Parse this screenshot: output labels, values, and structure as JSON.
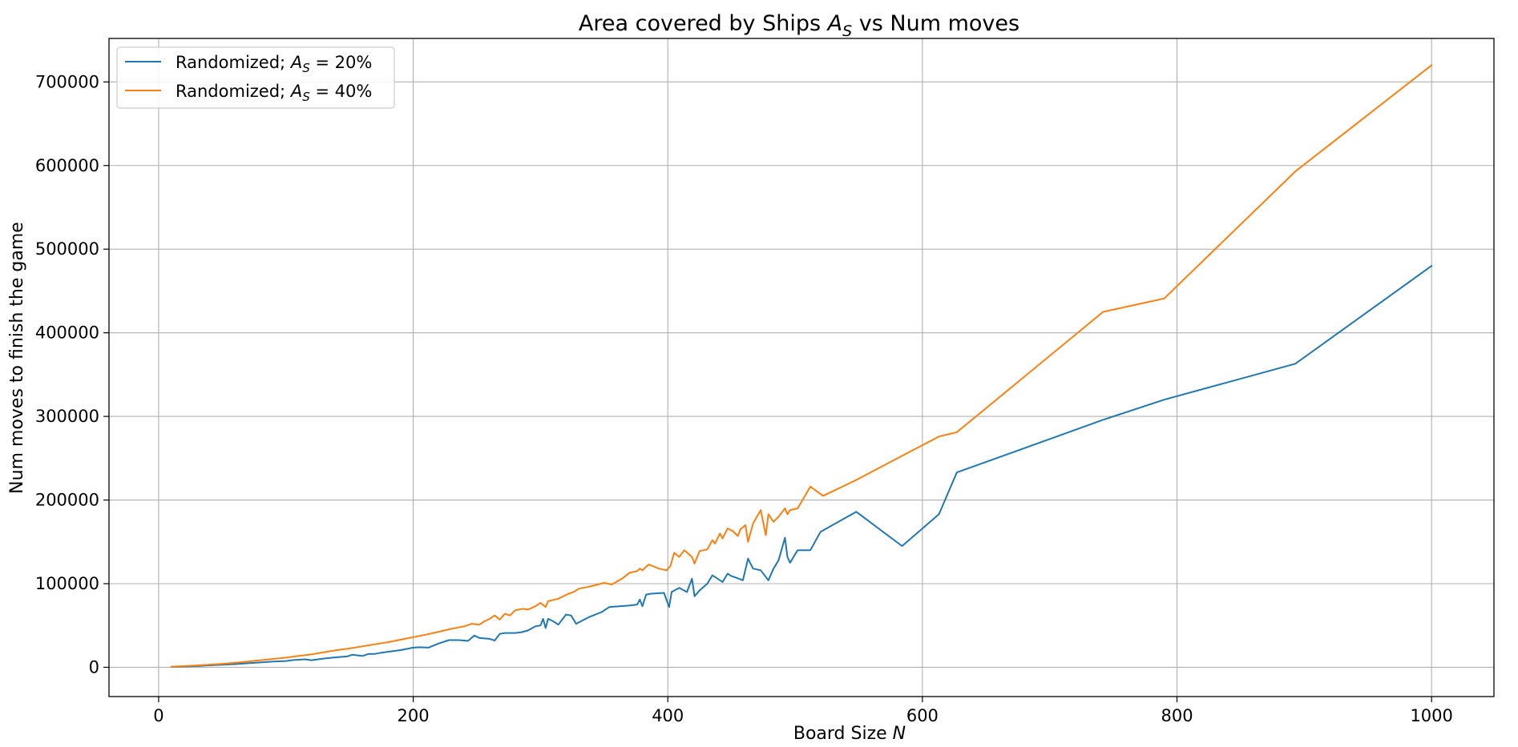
{
  "chart_data": {
    "type": "line",
    "title": "Area covered by Ships A_S vs Num moves",
    "title_parts": {
      "prefix": "Area covered by Ships ",
      "var_main": "A",
      "var_sub": "S",
      "suffix": " vs Num moves"
    },
    "xlabel": "Board Size N",
    "xlabel_parts": {
      "prefix": "Board Size ",
      "var": "N"
    },
    "ylabel": "Num moves to finish the game",
    "xlim": [
      -39,
      1049
    ],
    "ylim": [
      -35000,
      752000
    ],
    "xticks": [
      0,
      200,
      400,
      600,
      800,
      1000
    ],
    "xtick_labels": [
      "0",
      "200",
      "400",
      "600",
      "800",
      "1000"
    ],
    "yticks": [
      0,
      100000,
      200000,
      300000,
      400000,
      500000,
      600000,
      700000
    ],
    "ytick_labels": [
      "0",
      "100000",
      "200000",
      "300000",
      "400000",
      "500000",
      "600000",
      "700000"
    ],
    "grid": true,
    "legend_position": "top-left",
    "series": [
      {
        "name": "Randomized; A_S = 20%",
        "legend_parts": {
          "prefix": "Randomized; ",
          "var_main": "A",
          "var_sub": "S",
          "suffix": " = 20%"
        },
        "color": "#1f77b4",
        "x": [
          10,
          20,
          30,
          40,
          50,
          60,
          70,
          80,
          90,
          100,
          105,
          110,
          115,
          120,
          130,
          140,
          148,
          152,
          160,
          165,
          170,
          175,
          180,
          190,
          200,
          205,
          212,
          220,
          228,
          236,
          243,
          248,
          252,
          260,
          264,
          268,
          272,
          280,
          285,
          290,
          296,
          300,
          302,
          304,
          306,
          310,
          314,
          320,
          324,
          328,
          338,
          348,
          354,
          362,
          370,
          376,
          378,
          380,
          383,
          387,
          397,
          401,
          403,
          409,
          415,
          419,
          421,
          425,
          431,
          435,
          439,
          443,
          447,
          450,
          454,
          459,
          463,
          467,
          473,
          479,
          483,
          487,
          492,
          494,
          496,
          502,
          512,
          520,
          548,
          584,
          613,
          627,
          742,
          790,
          893,
          1000
        ],
        "y": [
          500,
          900,
          1500,
          2300,
          3000,
          3800,
          4800,
          5800,
          6800,
          7500,
          8600,
          9000,
          9500,
          8500,
          10500,
          12000,
          13000,
          15000,
          13500,
          16000,
          16000,
          17500,
          18500,
          20500,
          23500,
          24000,
          23500,
          28500,
          32500,
          32500,
          31500,
          38000,
          35000,
          34000,
          32000,
          40000,
          41000,
          41000,
          42000,
          44000,
          49000,
          50000,
          58000,
          47000,
          58000,
          55000,
          51000,
          63000,
          62000,
          52000,
          60000,
          66000,
          72000,
          73000,
          74000,
          75000,
          81000,
          73000,
          87000,
          88000,
          89000,
          72000,
          90000,
          95000,
          90000,
          106000,
          85000,
          92000,
          100000,
          110000,
          106000,
          102000,
          112000,
          109000,
          107000,
          104000,
          130000,
          118000,
          116000,
          104000,
          118000,
          128000,
          155000,
          132000,
          125000,
          140000,
          140000,
          162000,
          186000,
          145000,
          183000,
          233000,
          296000,
          320000,
          363000,
          480000
        ]
      },
      {
        "name": "Randomized; A_S = 40%",
        "legend_parts": {
          "prefix": "Randomized; ",
          "var_main": "A",
          "var_sub": "S",
          "suffix": " = 40%"
        },
        "color": "#ff7f0e",
        "x": [
          10,
          20,
          30,
          40,
          50,
          60,
          70,
          80,
          90,
          100,
          110,
          120,
          130,
          140,
          150,
          160,
          170,
          180,
          190,
          200,
          210,
          220,
          230,
          240,
          246,
          252,
          256,
          260,
          264,
          268,
          272,
          276,
          280,
          286,
          290,
          296,
          300,
          304,
          306,
          314,
          318,
          322,
          326,
          330,
          340,
          350,
          356,
          364,
          370,
          376,
          378,
          380,
          385,
          393,
          399,
          402,
          405,
          409,
          413,
          419,
          421,
          425,
          431,
          435,
          437,
          441,
          443,
          447,
          451,
          455,
          457,
          461,
          463,
          467,
          473,
          477,
          479,
          483,
          487,
          492,
          494,
          496,
          502,
          512,
          522,
          548,
          613,
          627,
          742,
          790,
          893,
          1000
        ],
        "y": [
          800,
          1400,
          2200,
          3200,
          4200,
          5500,
          6800,
          8500,
          10000,
          11500,
          13500,
          15500,
          18000,
          20500,
          22500,
          25000,
          27500,
          30000,
          33000,
          36000,
          39000,
          42500,
          46000,
          49000,
          52000,
          51000,
          55000,
          58000,
          62000,
          57000,
          64000,
          62000,
          68000,
          70000,
          69000,
          73000,
          77000,
          72000,
          79000,
          82000,
          85000,
          88000,
          90000,
          94000,
          97000,
          101000,
          99000,
          106000,
          113000,
          115000,
          118000,
          116000,
          123000,
          118000,
          116000,
          121000,
          137000,
          132000,
          140000,
          132000,
          124000,
          139000,
          141000,
          152000,
          148000,
          160000,
          154000,
          166000,
          163000,
          157000,
          165000,
          170000,
          150000,
          172000,
          188000,
          158000,
          183000,
          174000,
          180000,
          190000,
          183000,
          188000,
          190000,
          216000,
          205000,
          224000,
          276000,
          281000,
          425000,
          441000,
          593000,
          720000
        ]
      }
    ]
  }
}
